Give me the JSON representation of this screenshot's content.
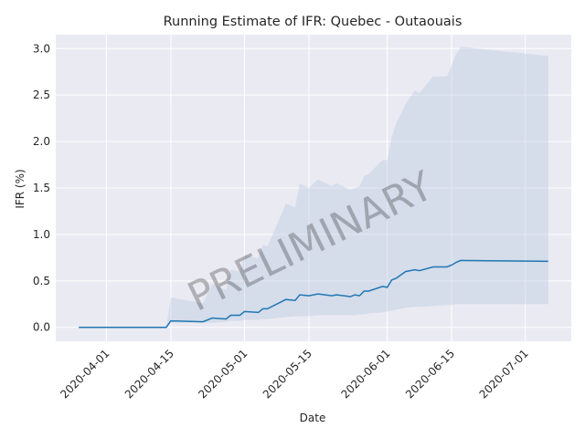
{
  "chart_data": {
    "type": "line",
    "title": "Running Estimate of IFR: Quebec - Outaouais",
    "xlabel": "Date",
    "ylabel": "IFR (%)",
    "watermark": "PRELIMINARY",
    "grid": true,
    "xlim": [
      "2020-03-21",
      "2020-07-11"
    ],
    "ylim": [
      -0.15,
      3.15
    ],
    "x_ticks": [
      "2020-04-01",
      "2020-04-15",
      "2020-05-01",
      "2020-05-15",
      "2020-06-01",
      "2020-06-15",
      "2020-07-01"
    ],
    "y_ticks": [
      "0.0",
      "0.5",
      "1.0",
      "1.5",
      "2.0",
      "2.5",
      "3.0"
    ],
    "colors": {
      "line": "#1f77b4",
      "band": "#b0c4de",
      "plot_bg": "#eaeaf2",
      "grid": "#ffffff"
    },
    "series": [
      {
        "x": [
          "2020-03-26",
          "2020-04-14",
          "2020-04-15",
          "2020-04-22",
          "2020-04-24",
          "2020-04-27",
          "2020-04-28",
          "2020-04-30",
          "2020-05-01",
          "2020-05-04",
          "2020-05-05",
          "2020-05-06",
          "2020-05-10",
          "2020-05-12",
          "2020-05-13",
          "2020-05-15",
          "2020-05-17",
          "2020-05-20",
          "2020-05-21",
          "2020-05-24",
          "2020-05-25",
          "2020-05-26",
          "2020-05-27",
          "2020-05-28",
          "2020-05-31",
          "2020-06-01",
          "2020-06-02",
          "2020-06-03",
          "2020-06-05",
          "2020-06-07",
          "2020-06-08",
          "2020-06-11",
          "2020-06-14",
          "2020-06-15",
          "2020-06-16",
          "2020-06-17",
          "2020-07-06"
        ],
        "y": [
          0.0,
          0.0,
          0.07,
          0.06,
          0.1,
          0.09,
          0.13,
          0.13,
          0.17,
          0.16,
          0.2,
          0.2,
          0.3,
          0.29,
          0.35,
          0.34,
          0.36,
          0.34,
          0.35,
          0.33,
          0.35,
          0.34,
          0.39,
          0.39,
          0.44,
          0.43,
          0.51,
          0.53,
          0.6,
          0.62,
          0.61,
          0.65,
          0.65,
          0.67,
          0.7,
          0.72,
          0.71
        ],
        "lower": [
          0.0,
          0.0,
          0.05,
          0.05,
          0.05,
          0.06,
          0.07,
          0.07,
          0.08,
          0.08,
          0.09,
          0.09,
          0.11,
          0.12,
          0.12,
          0.12,
          0.13,
          0.13,
          0.13,
          0.13,
          0.13,
          0.14,
          0.14,
          0.15,
          0.16,
          0.17,
          0.18,
          0.19,
          0.21,
          0.22,
          0.22,
          0.23,
          0.24,
          0.24,
          0.25,
          0.25,
          0.25
        ],
        "upper": [
          0.0,
          0.0,
          0.32,
          0.26,
          0.47,
          0.4,
          0.62,
          0.6,
          0.78,
          0.74,
          0.89,
          0.87,
          1.33,
          1.29,
          1.55,
          1.5,
          1.59,
          1.52,
          1.55,
          1.48,
          1.5,
          1.52,
          1.63,
          1.65,
          1.8,
          1.8,
          2.05,
          2.2,
          2.4,
          2.55,
          2.52,
          2.7,
          2.7,
          2.82,
          2.94,
          3.02,
          2.92
        ]
      }
    ]
  }
}
